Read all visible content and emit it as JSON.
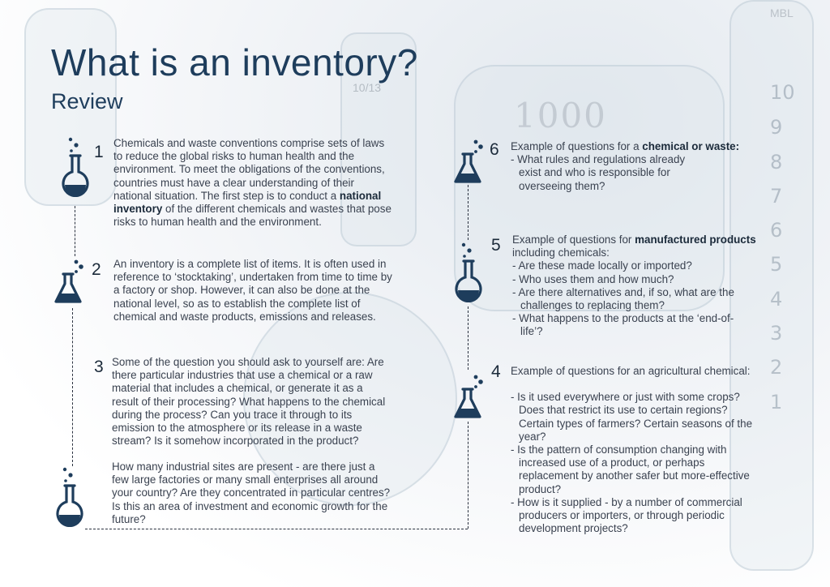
{
  "title": "What is an inventory?",
  "subtitle": "Review",
  "colors": {
    "heading": "#1e3d5c",
    "icon": "#1e3d5c",
    "text": "#3a4250"
  },
  "background": {
    "scale_marks": [
      "10",
      "9",
      "8",
      "7",
      "6",
      "5",
      "4",
      "3",
      "2",
      "1"
    ],
    "flask_text": "1000",
    "cylinder_text": "10/13",
    "brand_text": "MBL"
  },
  "sections": {
    "s1": {
      "number": "1",
      "icon": "round-flask-icon",
      "text_before": "Chemicals and waste conventions comprise sets of laws to reduce the global risks to human health and the environment. To meet the obligations of the conventions, countries must have a clear understanding of their national situation. The first step is to conduct a ",
      "bold": "national inventory",
      "text_after": " of the different chemicals and wastes that pose risks to human health and the environment."
    },
    "s2": {
      "number": "2",
      "icon": "conical-flask-icon",
      "text": "An inventory is a complete list of items. It is often used in reference to ‘stocktaking’, undertaken from time to time by a factory or shop. However, it can also be done at the national level, so as to establish the complete list of chemical and waste products, emissions and releases."
    },
    "s3": {
      "number": "3",
      "icon": "round-flask-icon",
      "text": "Some of the question you should ask to yourself are: Are there particular industries that use a chemical or a raw material that includes a chemical, or generate it as a result of their processing? What happens to the chemical during the process? Can you trace it through to its emission to the atmosphere or its release in a waste stream? Is it somehow incorporated in the product?",
      "text2": "How many industrial sites are present - are there just a few large factories or many small enterprises all around your country? Are they concentrated in particular centres? Is this an area of investment and economic growth for the future?"
    },
    "s4": {
      "number": "4",
      "icon": "conical-flask-icon",
      "intro": "Example of questions for an agricultural chemical:",
      "items": [
        "- Is it used everywhere or just with some crops? Does that restrict its use to certain regions? Certain types of farmers? Certain seasons of the year?",
        "- Is the pattern of consumption changing with increased use of a product, or perhaps replacement by another safer but more-effective product?",
        "- How is it supplied - by a number of commercial producers or importers, or through periodic development projects?"
      ]
    },
    "s5": {
      "number": "5",
      "icon": "round-flask-icon",
      "intro_before": "Example of questions for ",
      "intro_bold": "manufactured products",
      "intro_after": " including chemicals:",
      "items": [
        "- Are these made locally or imported?",
        "- Who uses them and how much?",
        "- Are there alternatives and, if so, what are the challenges to replacing them?",
        "- What happens to the products at the ‘end-of-life’?"
      ]
    },
    "s6": {
      "number": "6",
      "icon": "conical-flask-icon",
      "intro_before": "Example of questions for a ",
      "intro_bold": "chemical or waste:",
      "items": [
        "- What rules and regulations already exist and who is responsible for overseeing them?"
      ]
    }
  }
}
